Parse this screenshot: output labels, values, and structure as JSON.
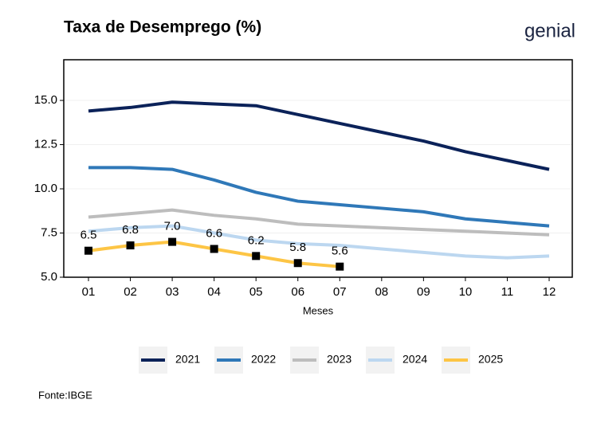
{
  "chart_data": {
    "type": "line",
    "title": "Taxa de Desemprego (%)",
    "logo": "genial",
    "x_label": "Meses",
    "source": "Fonte:IBGE",
    "categories": [
      "01",
      "02",
      "03",
      "04",
      "05",
      "06",
      "07",
      "08",
      "09",
      "10",
      "11",
      "12"
    ],
    "ylim": [
      5,
      17.3
    ],
    "yticks": [
      {
        "value": 5,
        "label": "5.0"
      },
      {
        "value": 7.5,
        "label": "7.5"
      },
      {
        "value": 10,
        "label": "10.0"
      },
      {
        "value": 12.5,
        "label": "12.5"
      },
      {
        "value": 15,
        "label": "15.0"
      }
    ],
    "grid": true,
    "legend": "bottom",
    "series": [
      {
        "name": "2021",
        "color": "#0b2259",
        "values": [
          14.4,
          14.6,
          14.9,
          14.8,
          14.7,
          14.2,
          13.7,
          13.2,
          12.7,
          12.1,
          11.6,
          11.1
        ]
      },
      {
        "name": "2022",
        "color": "#2f78b8",
        "values": [
          11.2,
          11.2,
          11.1,
          10.5,
          9.8,
          9.3,
          9.1,
          8.9,
          8.7,
          8.3,
          8.1,
          7.9
        ]
      },
      {
        "name": "2023",
        "color": "#bdbdbd",
        "values": [
          8.4,
          8.6,
          8.8,
          8.5,
          8.3,
          8.0,
          7.9,
          7.8,
          7.7,
          7.6,
          7.5,
          7.4
        ]
      },
      {
        "name": "2024",
        "color": "#bcd7f0",
        "values": [
          7.6,
          7.8,
          7.9,
          7.5,
          7.1,
          6.9,
          6.8,
          6.6,
          6.4,
          6.2,
          6.1,
          6.2
        ]
      },
      {
        "name": "2025",
        "color": "#fdc545",
        "markers": true,
        "values": [
          6.5,
          6.8,
          7.0,
          6.6,
          6.2,
          5.8,
          5.6,
          null,
          null,
          null,
          null,
          null
        ],
        "value_labels": [
          "6.5",
          "6.8",
          "7.0",
          "6.6",
          "6.2",
          "5.8",
          "5.6",
          null,
          null,
          null,
          null,
          null
        ]
      }
    ]
  }
}
